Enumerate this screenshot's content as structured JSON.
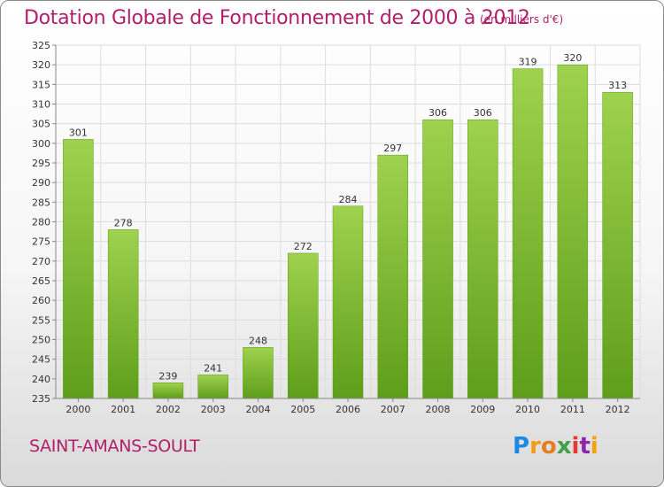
{
  "title": "Dotation Globale de Fonctionnement de 2000 à 2012",
  "subtitle": "(en milliers d'€)",
  "commune": "SAINT-AMANS-SOULT",
  "logo": {
    "letters": [
      "P",
      "r",
      "o",
      "x",
      "i",
      "t",
      "i"
    ],
    "colors": [
      "#1e88e5",
      "#f39c12",
      "#e67e22",
      "#43a047",
      "#e53935",
      "#8e24aa",
      "#f4a300"
    ]
  },
  "colors": {
    "bar_top": "#9fd24e",
    "bar_bottom": "#5e9e1a",
    "title": "#b0206a",
    "grid": "#dddddd"
  },
  "chart_data": {
    "type": "bar",
    "title": "Dotation Globale de Fonctionnement de 2000 à 2012",
    "subtitle": "(en milliers d'€)",
    "categories": [
      "2000",
      "2001",
      "2002",
      "2003",
      "2004",
      "2005",
      "2006",
      "2007",
      "2008",
      "2009",
      "2010",
      "2011",
      "2012"
    ],
    "values": [
      301,
      278,
      239,
      241,
      248,
      272,
      284,
      297,
      306,
      306,
      319,
      320,
      313
    ],
    "ylim": [
      235,
      325
    ],
    "yticks": [
      235,
      240,
      245,
      250,
      255,
      260,
      265,
      270,
      275,
      280,
      285,
      290,
      295,
      300,
      305,
      310,
      315,
      320,
      325
    ],
    "grid": true,
    "xlabel": "",
    "ylabel": ""
  }
}
